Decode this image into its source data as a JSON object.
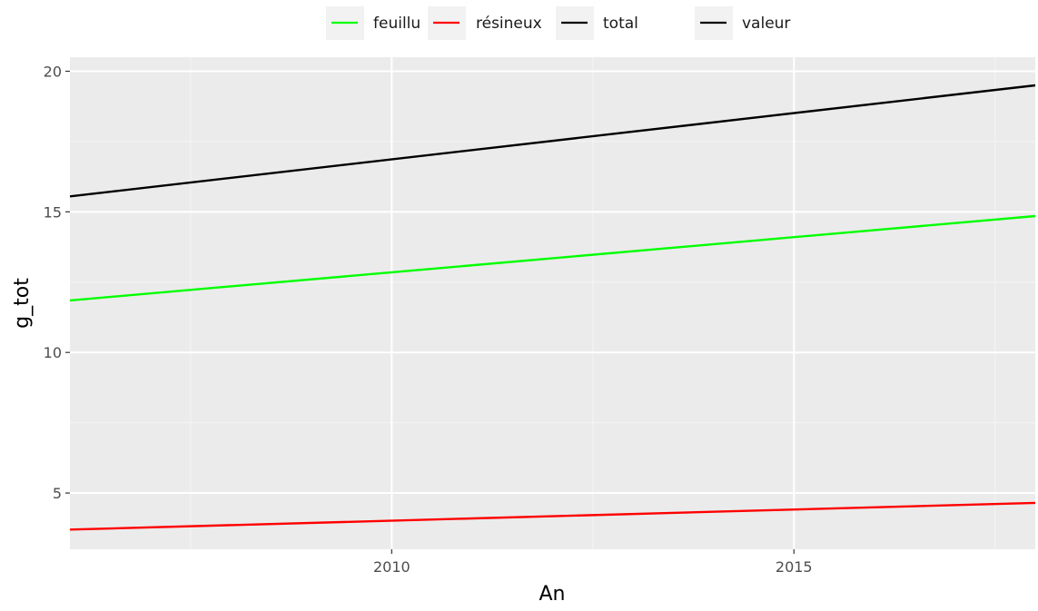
{
  "chart_data": {
    "type": "line",
    "title": "",
    "xlabel": "An",
    "ylabel": "g_tot",
    "xlim": [
      2006,
      2018
    ],
    "ylim": [
      3,
      20.5
    ],
    "x_ticks": [
      2010,
      2015
    ],
    "x_tick_labels": [
      "2010",
      "2015"
    ],
    "y_ticks": [
      5,
      10,
      15,
      20
    ],
    "y_tick_labels": [
      "5",
      "10",
      "15",
      "20"
    ],
    "grid": true,
    "legend_position": "top",
    "x": [
      2006,
      2018
    ],
    "series": [
      {
        "name": "feuillu",
        "color": "#00ff00",
        "values": [
          11.85,
          14.85
        ]
      },
      {
        "name": "résineux",
        "color": "#ff0000",
        "values": [
          3.7,
          4.65
        ]
      },
      {
        "name": "total",
        "color": "#000000",
        "values": [
          15.55,
          19.5
        ]
      }
    ],
    "legend_groups": [
      {
        "entries": [
          {
            "label": "feuillu",
            "color": "#00ff00"
          },
          {
            "label": "résineux",
            "color": "#ff0000"
          },
          {
            "label": "total",
            "color": "#000000"
          }
        ]
      },
      {
        "entries": [
          {
            "label": "valeur",
            "color": "#000000"
          }
        ]
      }
    ]
  }
}
